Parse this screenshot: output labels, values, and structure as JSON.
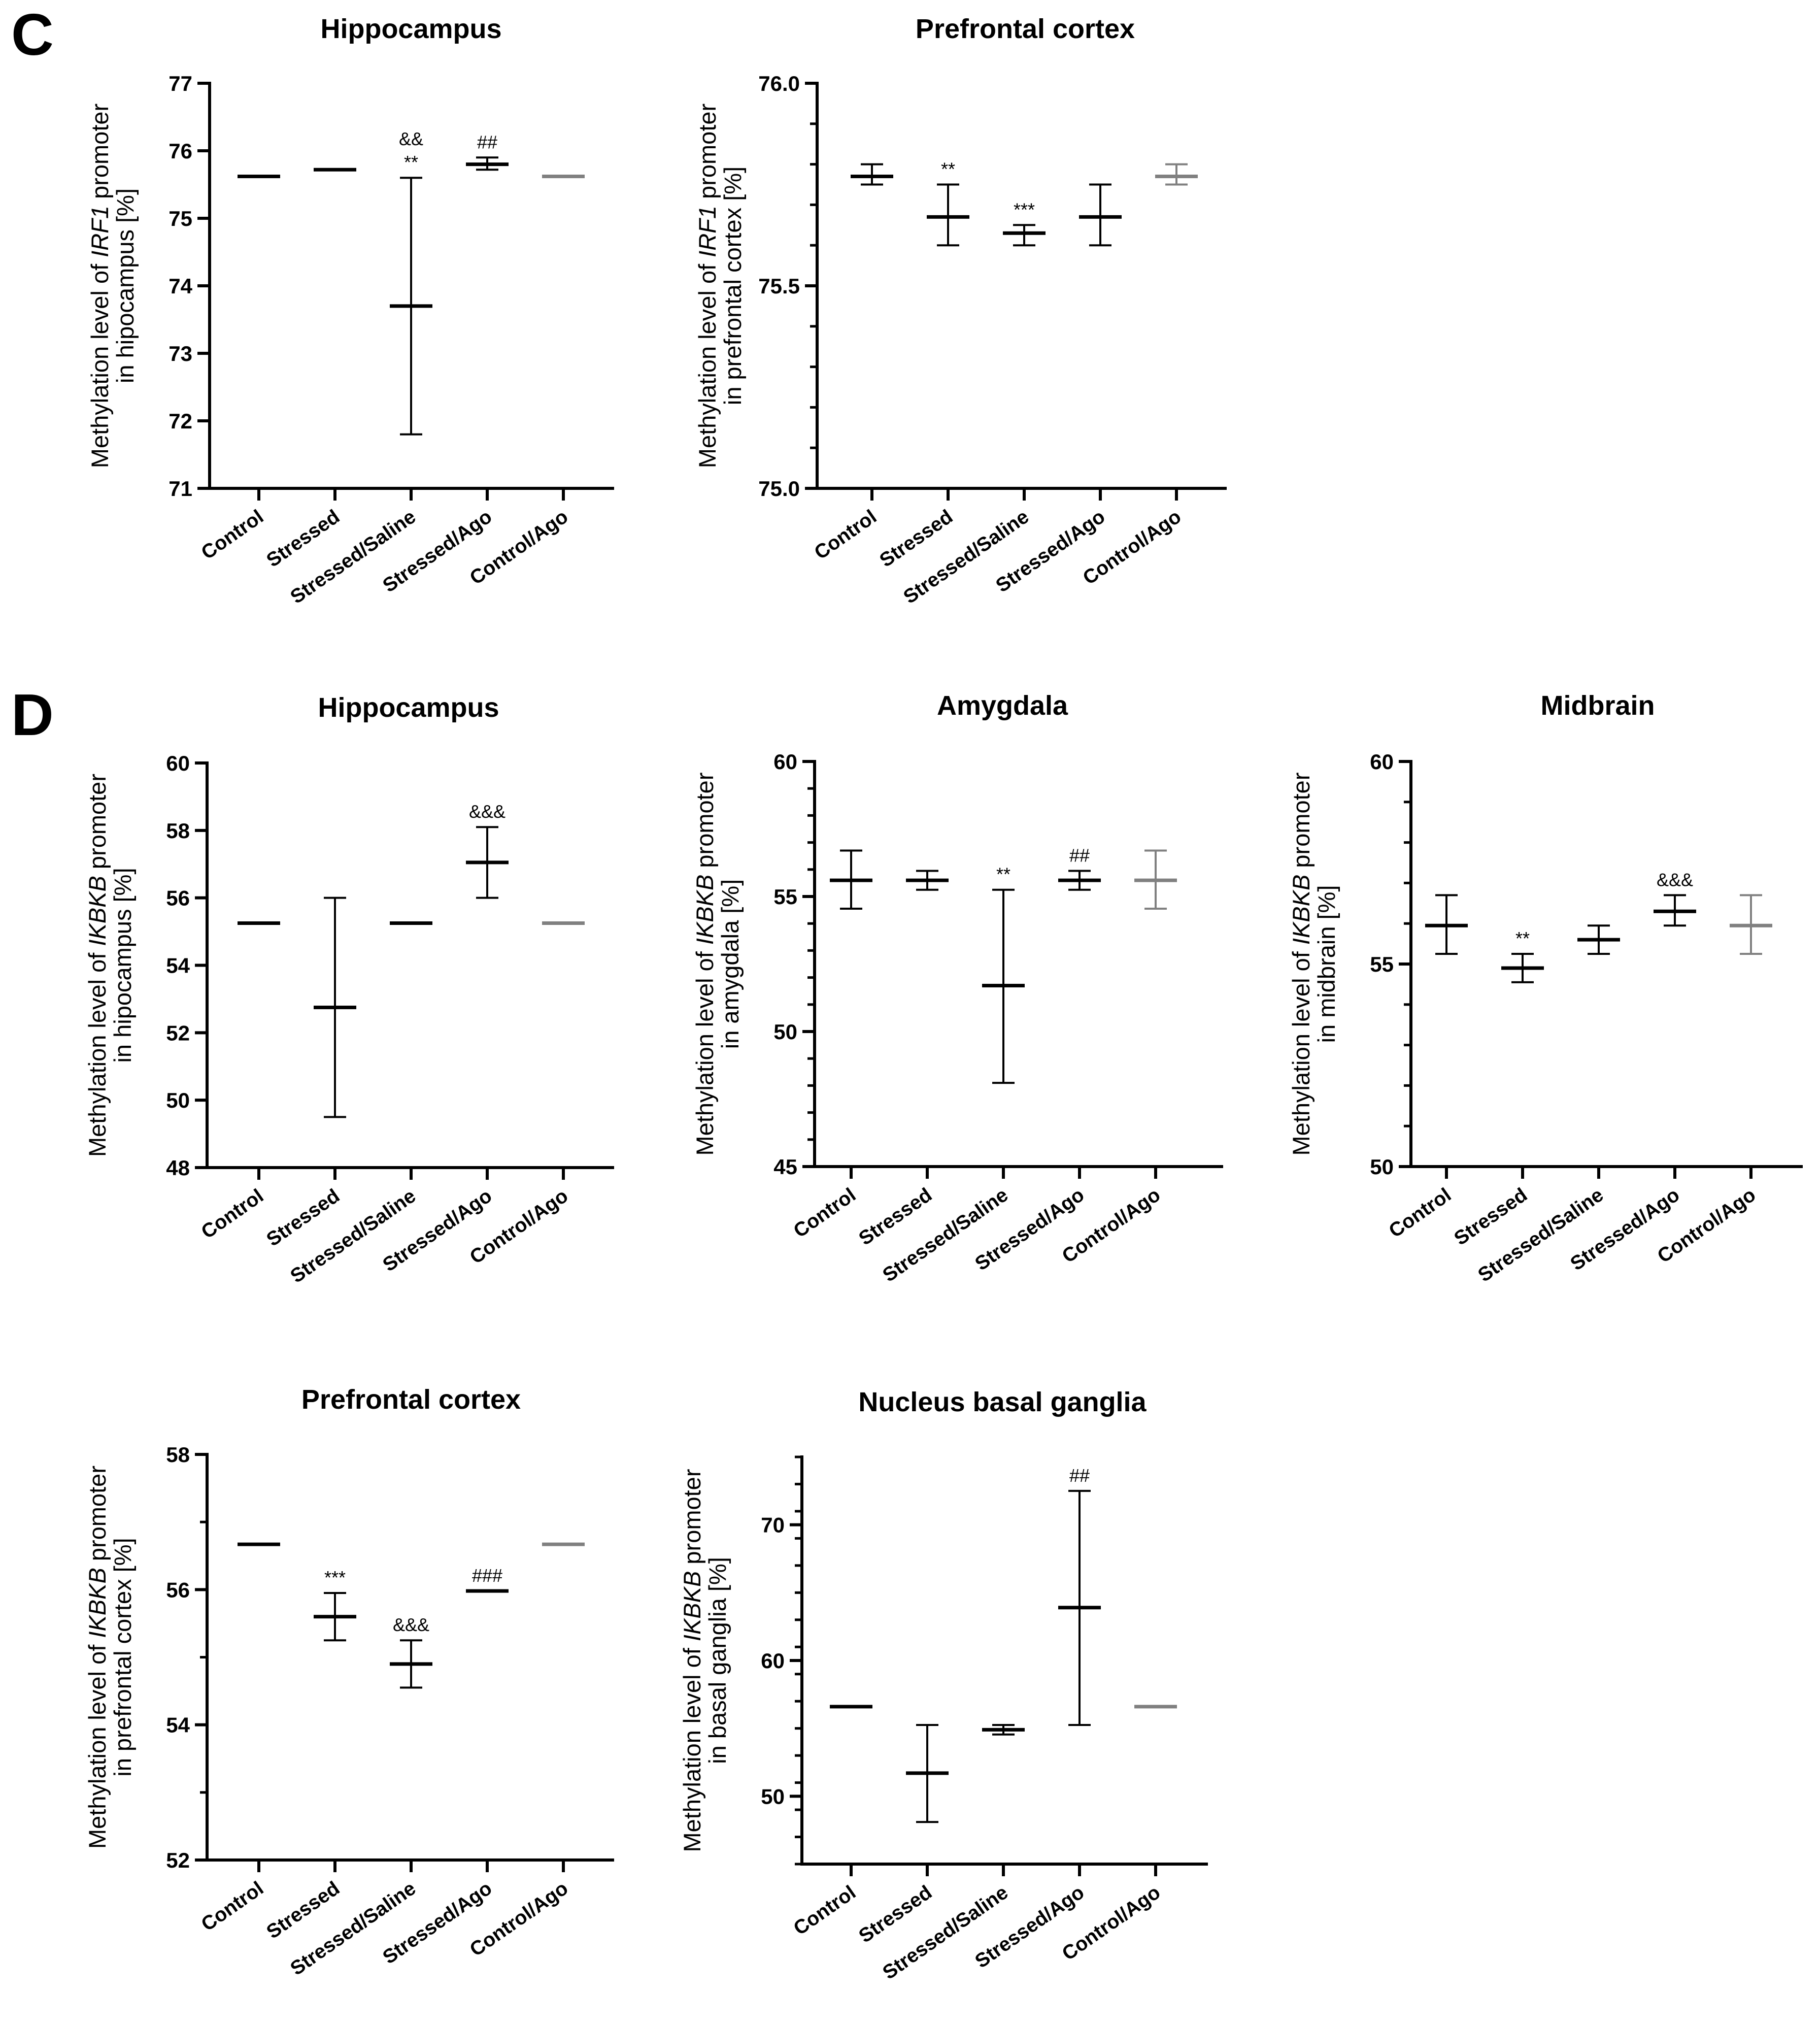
{
  "figure": {
    "sections": [
      {
        "id": "C",
        "label": "C"
      },
      {
        "id": "D",
        "label": "D"
      }
    ]
  },
  "chart_data": [
    {
      "id": "C-hippocampus",
      "type": "scatter-errorbar",
      "section": "C",
      "title": "Hippocampus",
      "ylabel_lines": [
        [
          "Methylation level of ",
          "IRF1",
          " promoter"
        ],
        [
          "in hipocampus [%]"
        ]
      ],
      "ylim": [
        71,
        77
      ],
      "yticks": [
        "71",
        "72",
        "73",
        "74",
        "75",
        "76",
        "77"
      ],
      "minor_per_major": 0,
      "categories": [
        "Control",
        "Stressed",
        "Stressed/Saline",
        "Stressed/Ago",
        "Control/Ago"
      ],
      "series": [
        {
          "name": "Control",
          "mean": 75.62,
          "low": 75.62,
          "high": 75.62,
          "color": "#000000",
          "annotations": []
        },
        {
          "name": "Stressed",
          "mean": 75.72,
          "low": 75.72,
          "high": 75.72,
          "color": "#000000",
          "annotations": []
        },
        {
          "name": "Stressed/Saline",
          "mean": 73.7,
          "low": 71.8,
          "high": 75.6,
          "color": "#000000",
          "annotations": [
            "&&",
            "**"
          ]
        },
        {
          "name": "Stressed/Ago",
          "mean": 75.8,
          "low": 75.72,
          "high": 75.9,
          "color": "#000000",
          "annotations": [
            "##"
          ]
        },
        {
          "name": "Control/Ago",
          "mean": 75.62,
          "low": 75.62,
          "high": 75.62,
          "color": "#808080",
          "annotations": []
        }
      ]
    },
    {
      "id": "C-prefrontal",
      "type": "scatter-errorbar",
      "section": "C",
      "title": "Prefrontal cortex",
      "ylabel_lines": [
        [
          "Methylation level of ",
          "IRF1",
          " promoter"
        ],
        [
          "in prefrontal cortex [%]"
        ]
      ],
      "ylim": [
        75.0,
        76.0
      ],
      "yticks": [
        "75.0",
        "75.5",
        "76.0"
      ],
      "minor_per_major": 4,
      "categories": [
        "Control",
        "Stressed",
        "Stressed/Saline",
        "Stressed/Ago",
        "Control/Ago"
      ],
      "series": [
        {
          "name": "Control",
          "mean": 75.77,
          "low": 75.75,
          "high": 75.8,
          "color": "#000000",
          "annotations": []
        },
        {
          "name": "Stressed",
          "mean": 75.67,
          "low": 75.6,
          "high": 75.75,
          "color": "#000000",
          "annotations": [
            "**"
          ]
        },
        {
          "name": "Stressed/Saline",
          "mean": 75.63,
          "low": 75.6,
          "high": 75.65,
          "color": "#000000",
          "annotations": [
            "***"
          ]
        },
        {
          "name": "Stressed/Ago",
          "mean": 75.67,
          "low": 75.6,
          "high": 75.75,
          "color": "#000000",
          "annotations": []
        },
        {
          "name": "Control/Ago",
          "mean": 75.77,
          "low": 75.75,
          "high": 75.8,
          "color": "#808080",
          "annotations": []
        }
      ]
    },
    {
      "id": "D-hippocampus",
      "type": "scatter-errorbar",
      "section": "D",
      "title": "Hippocampus",
      "ylabel_lines": [
        [
          "Methylation level of ",
          "IKBKB",
          " promoter"
        ],
        [
          "in hipocampus [%]"
        ]
      ],
      "ylim": [
        48,
        60
      ],
      "yticks": [
        "48",
        "50",
        "52",
        "54",
        "56",
        "58",
        "60"
      ],
      "minor_per_major": 0,
      "categories": [
        "Control",
        "Stressed",
        "Stressed/Saline",
        "Stressed/Ago",
        "Control/Ago"
      ],
      "series": [
        {
          "name": "Control",
          "mean": 55.25,
          "low": 55.25,
          "high": 55.25,
          "color": "#000000",
          "annotations": []
        },
        {
          "name": "Stressed",
          "mean": 52.75,
          "low": 49.5,
          "high": 56.0,
          "color": "#000000",
          "annotations": []
        },
        {
          "name": "Stressed/Saline",
          "mean": 55.25,
          "low": 55.25,
          "high": 55.25,
          "color": "#000000",
          "annotations": []
        },
        {
          "name": "Stressed/Ago",
          "mean": 57.05,
          "low": 56.0,
          "high": 58.1,
          "color": "#000000",
          "annotations": [
            "&&&"
          ]
        },
        {
          "name": "Control/Ago",
          "mean": 55.25,
          "low": 55.25,
          "high": 55.25,
          "color": "#808080",
          "annotations": []
        }
      ]
    },
    {
      "id": "D-amygdala",
      "type": "scatter-errorbar",
      "section": "D",
      "title": "Amygdala",
      "ylabel_lines": [
        [
          "Methylation level of ",
          "IKBKB",
          "  promoter"
        ],
        [
          "in amygdala [%]"
        ]
      ],
      "ylim": [
        45,
        60
      ],
      "yticks": [
        "45",
        "50",
        "55",
        "60"
      ],
      "minor_per_major": 4,
      "categories": [
        "Control",
        "Stressed",
        "Stressed/Saline",
        "Stressed/Ago",
        "Control/Ago"
      ],
      "series": [
        {
          "name": "Control",
          "mean": 55.6,
          "low": 54.55,
          "high": 56.7,
          "color": "#000000",
          "annotations": []
        },
        {
          "name": "Stressed",
          "mean": 55.6,
          "low": 55.25,
          "high": 55.95,
          "color": "#000000",
          "annotations": []
        },
        {
          "name": "Stressed/Saline",
          "mean": 51.7,
          "low": 48.1,
          "high": 55.25,
          "color": "#000000",
          "annotations": [
            "**"
          ]
        },
        {
          "name": "Stressed/Ago",
          "mean": 55.6,
          "low": 55.25,
          "high": 55.95,
          "color": "#000000",
          "annotations": [
            "##"
          ]
        },
        {
          "name": "Control/Ago",
          "mean": 55.6,
          "low": 54.55,
          "high": 56.7,
          "color": "#808080",
          "annotations": []
        }
      ]
    },
    {
      "id": "D-midbrain",
      "type": "scatter-errorbar",
      "section": "D",
      "title": "Midbrain",
      "ylabel_lines": [
        [
          "Methylation level of ",
          "IKBKB",
          " promoter"
        ],
        [
          "in midbrain [%]"
        ]
      ],
      "ylim": [
        50,
        60
      ],
      "yticks": [
        "50",
        "55",
        "60"
      ],
      "minor_per_major": 4,
      "categories": [
        "Control",
        "Stressed",
        "Stressed/Saline",
        "Stressed/Ago",
        "Control/Ago"
      ],
      "series": [
        {
          "name": "Control",
          "mean": 55.95,
          "low": 55.25,
          "high": 56.7,
          "color": "#000000",
          "annotations": []
        },
        {
          "name": "Stressed",
          "mean": 54.9,
          "low": 54.55,
          "high": 55.25,
          "color": "#000000",
          "annotations": [
            "**"
          ]
        },
        {
          "name": "Stressed/Saline",
          "mean": 55.6,
          "low": 55.25,
          "high": 55.95,
          "color": "#000000",
          "annotations": []
        },
        {
          "name": "Stressed/Ago",
          "mean": 56.3,
          "low": 55.95,
          "high": 56.7,
          "color": "#000000",
          "annotations": [
            "&&&"
          ]
        },
        {
          "name": "Control/Ago",
          "mean": 55.95,
          "low": 55.25,
          "high": 56.7,
          "color": "#808080",
          "annotations": []
        }
      ]
    },
    {
      "id": "D-prefrontal",
      "type": "scatter-errorbar",
      "section": "D",
      "title": "Prefrontal cortex",
      "ylabel_lines": [
        [
          "Methylation level of ",
          "IKBKB",
          " promoter"
        ],
        [
          "in prefrontal cortex [%]"
        ]
      ],
      "ylim": [
        52,
        58
      ],
      "yticks": [
        "52",
        "54",
        "56",
        "58"
      ],
      "minor_per_major": 1,
      "categories": [
        "Control",
        "Stressed",
        "Stressed/Saline",
        "Stressed/Ago",
        "Control/Ago"
      ],
      "series": [
        {
          "name": "Control",
          "mean": 56.67,
          "low": 56.67,
          "high": 56.67,
          "color": "#000000",
          "annotations": []
        },
        {
          "name": "Stressed",
          "mean": 55.6,
          "low": 55.25,
          "high": 55.95,
          "color": "#000000",
          "annotations": [
            "***"
          ]
        },
        {
          "name": "Stressed/Saline",
          "mean": 54.9,
          "low": 54.55,
          "high": 55.25,
          "color": "#000000",
          "annotations": [
            "&&&"
          ]
        },
        {
          "name": "Stressed/Ago",
          "mean": 55.98,
          "low": 55.98,
          "high": 55.98,
          "color": "#000000",
          "annotations": [
            "###"
          ]
        },
        {
          "name": "Control/Ago",
          "mean": 56.67,
          "low": 56.67,
          "high": 56.67,
          "color": "#808080",
          "annotations": []
        }
      ]
    },
    {
      "id": "D-basal-ganglia",
      "type": "scatter-errorbar",
      "section": "D",
      "title": "Nucleus basal ganglia",
      "ylabel_lines": [
        [
          "Methylation level of ",
          "IKBKB",
          " promoter"
        ],
        [
          "in basal ganglia [%]"
        ]
      ],
      "ylim": [
        45,
        75
      ],
      "yticks": [
        "50",
        "60",
        "70"
      ],
      "ytick_values": [
        50,
        60,
        70
      ],
      "minor_per_major": 4,
      "categories": [
        "Control",
        "Stressed",
        "Stressed/Saline",
        "Stressed/Ago",
        "Control/Ago"
      ],
      "series": [
        {
          "name": "Control",
          "mean": 56.6,
          "low": 56.6,
          "high": 56.6,
          "color": "#000000",
          "annotations": []
        },
        {
          "name": "Stressed",
          "mean": 51.7,
          "low": 48.1,
          "high": 55.25,
          "color": "#000000",
          "annotations": []
        },
        {
          "name": "Stressed/Saline",
          "mean": 54.9,
          "low": 54.55,
          "high": 55.25,
          "color": "#000000",
          "annotations": []
        },
        {
          "name": "Stressed/Ago",
          "mean": 63.9,
          "low": 55.25,
          "high": 72.5,
          "color": "#000000",
          "annotations": [
            "##"
          ]
        },
        {
          "name": "Control/Ago",
          "mean": 56.6,
          "low": 56.6,
          "high": 56.6,
          "color": "#808080",
          "annotations": []
        }
      ]
    }
  ]
}
